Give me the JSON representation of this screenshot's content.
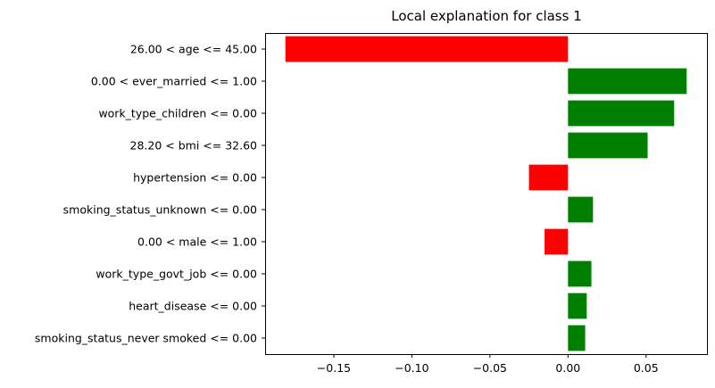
{
  "chart_data": {
    "type": "bar",
    "orientation": "horizontal",
    "title": "Local explanation for class 1",
    "xlabel": "",
    "ylabel": "",
    "categories": [
      "26.00 < age <= 45.00",
      "0.00 < ever_married <= 1.00",
      "work_type_children <= 0.00",
      "28.20 < bmi <= 32.60",
      "hypertension <= 0.00",
      "smoking_status_unknown <= 0.00",
      "0.00 < male <= 1.00",
      "work_type_govt_job <= 0.00",
      "heart_disease <= 0.00",
      "smoking_status_never smoked <= 0.00"
    ],
    "values": [
      -0.181,
      0.076,
      0.068,
      0.051,
      -0.025,
      0.016,
      -0.015,
      0.015,
      0.012,
      0.011
    ],
    "xlim": [
      -0.194,
      0.089
    ],
    "xticks": [
      -0.15,
      -0.1,
      -0.05,
      0.0,
      0.05
    ],
    "xtick_labels": [
      "−0.15",
      "−0.10",
      "−0.05",
      "0.00",
      "0.05"
    ],
    "grid": false,
    "colors": {
      "positive": "#008000",
      "negative": "#ff0000"
    }
  }
}
